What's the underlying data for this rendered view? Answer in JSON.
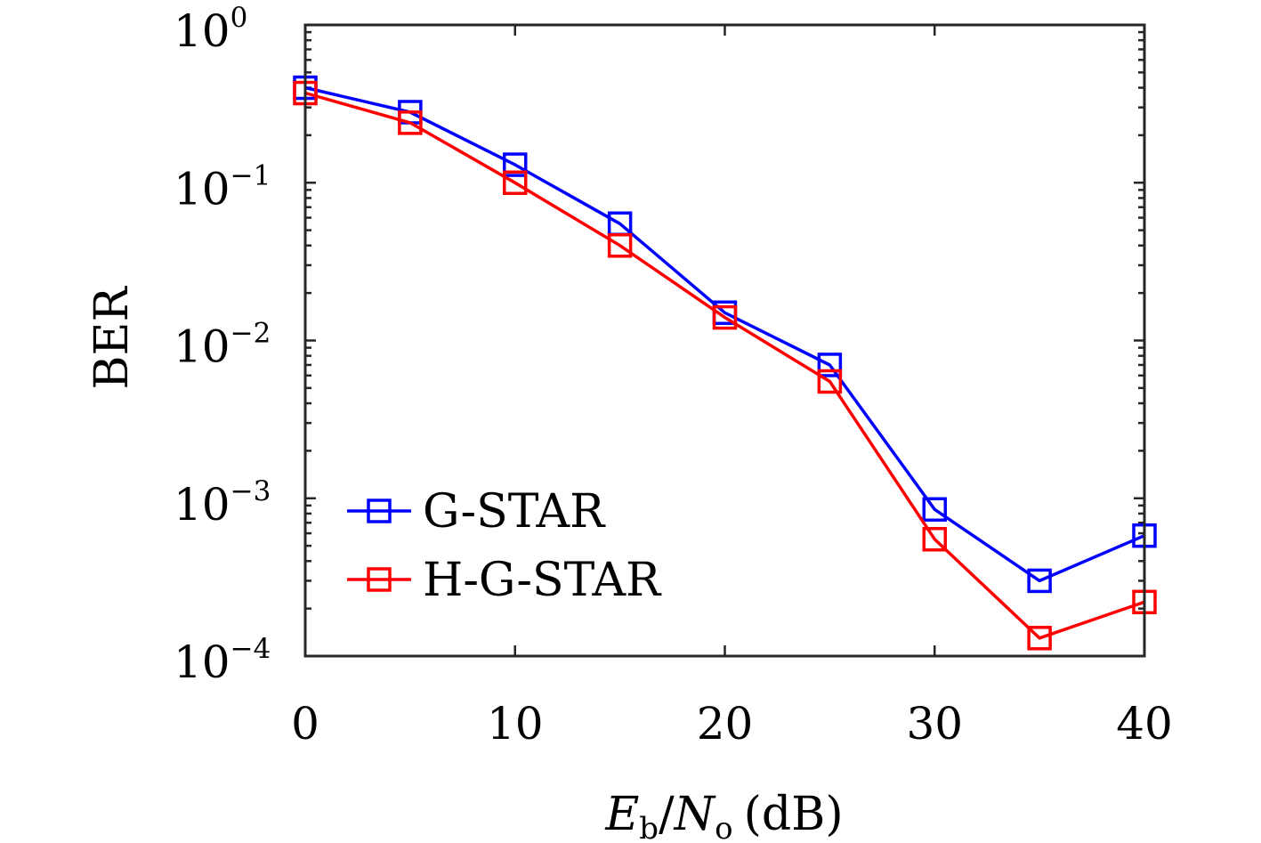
{
  "chart_data": {
    "type": "line",
    "title": "",
    "xlabel": {
      "E": "E",
      "b": "b",
      "slash": "/",
      "N": "N",
      "o": "o",
      "unit": "(dB)"
    },
    "ylabel": "BER",
    "x": [
      0,
      5,
      10,
      15,
      20,
      25,
      30,
      35,
      40
    ],
    "xlim": [
      0,
      40
    ],
    "ylim": [
      0.0001,
      1
    ],
    "yscale": "log",
    "xticks": [
      "0",
      "10",
      "20",
      "30",
      "40"
    ],
    "yticks": [
      {
        "base": "10",
        "exp": "0"
      },
      {
        "base": "10",
        "exp": "−1"
      },
      {
        "base": "10",
        "exp": "−2"
      },
      {
        "base": "10",
        "exp": "−3"
      },
      {
        "base": "10",
        "exp": "−4"
      }
    ],
    "grid": false,
    "legend_position": "lower-left",
    "marker": "square",
    "series": [
      {
        "name": "G-STAR",
        "color": "#0000ff",
        "values": [
          0.4,
          0.28,
          0.13,
          0.055,
          0.015,
          0.007,
          0.00085,
          0.0003,
          0.00058
        ]
      },
      {
        "name": "H-G-STAR",
        "color": "#ff0000",
        "values": [
          0.37,
          0.24,
          0.1,
          0.04,
          0.014,
          0.0055,
          0.00055,
          0.00013,
          0.00022
        ]
      }
    ]
  }
}
